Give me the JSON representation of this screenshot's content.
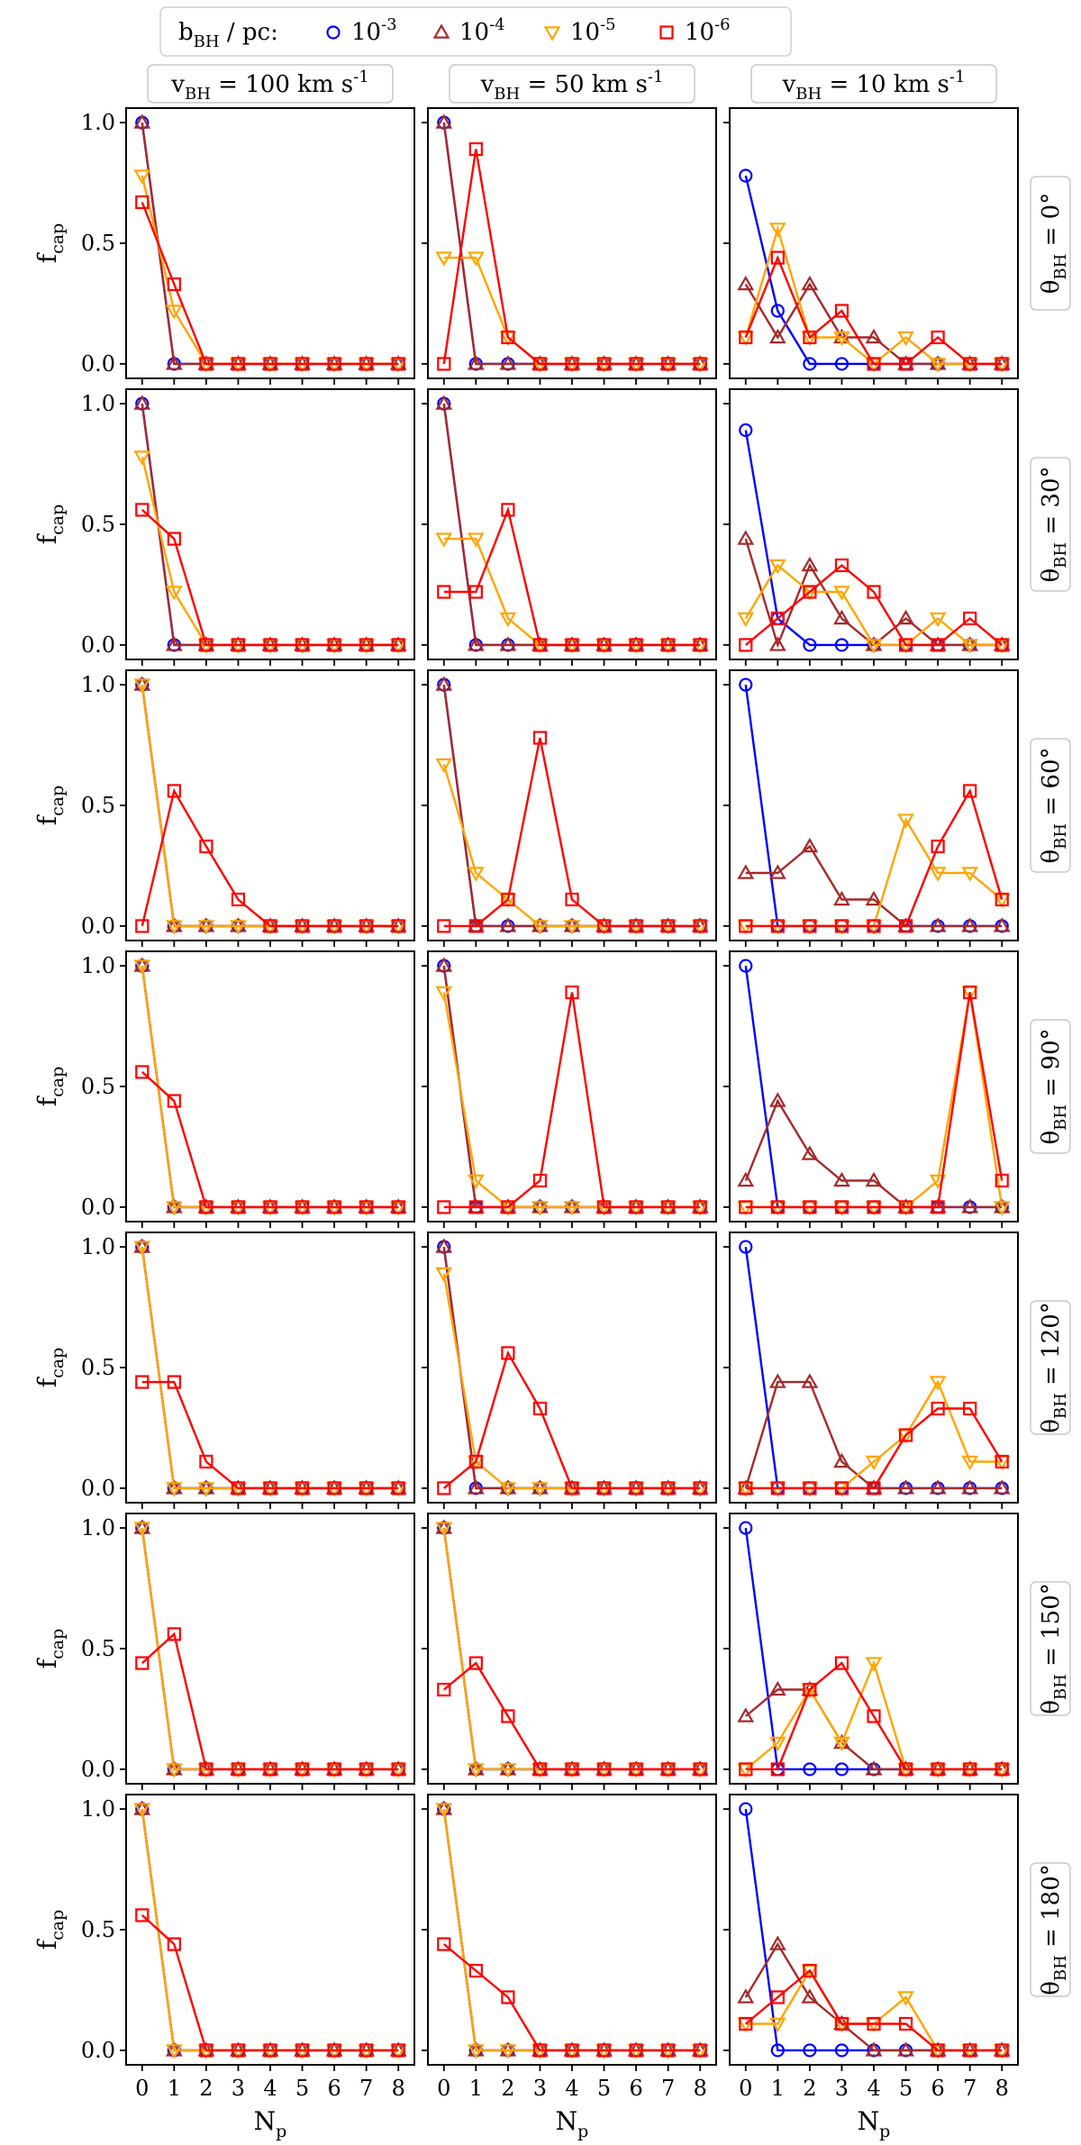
{
  "legend": {
    "title": "b_BH / pc:",
    "entries": [
      {
        "label": "10^-3",
        "color": "#0000ff",
        "marker": "circle"
      },
      {
        "label": "10^-4",
        "color": "#a52a2a",
        "marker": "triangle-up"
      },
      {
        "label": "10^-5",
        "color": "#ffa500",
        "marker": "triangle-down"
      },
      {
        "label": "10^-6",
        "color": "#ff0000",
        "marker": "square"
      }
    ]
  },
  "columns": [
    "v_BH = 100 km s^-1",
    "v_BH = 50 km s^-1",
    "v_BH = 10 km s^-1"
  ],
  "rows": [
    "θ_BH = 0°",
    "θ_BH = 30°",
    "θ_BH = 60°",
    "θ_BH = 90°",
    "θ_BH = 120°",
    "θ_BH = 150°",
    "θ_BH = 180°"
  ],
  "chart_data": {
    "type": "line",
    "xlabel": "N_p",
    "ylabel": "f_cap",
    "x": [
      0,
      1,
      2,
      3,
      4,
      5,
      6,
      7,
      8
    ],
    "xticks": [
      "0",
      "1",
      "2",
      "3",
      "4",
      "5",
      "6",
      "7",
      "8"
    ],
    "yticks": [
      "0.0",
      "0.5",
      "1.0"
    ],
    "ylim": [
      -0.06,
      1.06
    ],
    "panels": [
      [
        {
          "s1e3": [
            1,
            0,
            0,
            0,
            0,
            0,
            0,
            0,
            0
          ],
          "s1e4": [
            1,
            0,
            0,
            0,
            0,
            0,
            0,
            0,
            0
          ],
          "s1e5": [
            0.78,
            0.22,
            0,
            0,
            0,
            0,
            0,
            0,
            0
          ],
          "s1e6": [
            0.67,
            0.33,
            0,
            0,
            0,
            0,
            0,
            0,
            0
          ]
        },
        {
          "s1e3": [
            1,
            0,
            0,
            0,
            0,
            0,
            0,
            0,
            0
          ],
          "s1e4": [
            1,
            0,
            0,
            0,
            0,
            0,
            0,
            0,
            0
          ],
          "s1e5": [
            0.44,
            0.44,
            0.11,
            0,
            0,
            0,
            0,
            0,
            0
          ],
          "s1e6": [
            0,
            0.89,
            0.11,
            0,
            0,
            0,
            0,
            0,
            0
          ]
        },
        {
          "s1e3": [
            0.78,
            0.22,
            0,
            0,
            0,
            0,
            0,
            0,
            0
          ],
          "s1e4": [
            0.33,
            0.11,
            0.33,
            0.11,
            0.11,
            0,
            0,
            0,
            0
          ],
          "s1e5": [
            0.11,
            0.56,
            0.11,
            0.11,
            0,
            0.11,
            0,
            0,
            0
          ],
          "s1e6": [
            0.11,
            0.44,
            0.11,
            0.22,
            0,
            0,
            0.11,
            0,
            0
          ]
        }
      ],
      [
        {
          "s1e3": [
            1,
            0,
            0,
            0,
            0,
            0,
            0,
            0,
            0
          ],
          "s1e4": [
            1,
            0,
            0,
            0,
            0,
            0,
            0,
            0,
            0
          ],
          "s1e5": [
            0.78,
            0.22,
            0,
            0,
            0,
            0,
            0,
            0,
            0
          ],
          "s1e6": [
            0.56,
            0.44,
            0,
            0,
            0,
            0,
            0,
            0,
            0
          ]
        },
        {
          "s1e3": [
            1,
            0,
            0,
            0,
            0,
            0,
            0,
            0,
            0
          ],
          "s1e4": [
            1,
            0,
            0,
            0,
            0,
            0,
            0,
            0,
            0
          ],
          "s1e5": [
            0.44,
            0.44,
            0.11,
            0,
            0,
            0,
            0,
            0,
            0
          ],
          "s1e6": [
            0.22,
            0.22,
            0.56,
            0,
            0,
            0,
            0,
            0,
            0
          ]
        },
        {
          "s1e3": [
            0.89,
            0.11,
            0,
            0,
            0,
            0,
            0,
            0,
            0
          ],
          "s1e4": [
            0.44,
            0,
            0.33,
            0.11,
            0,
            0.11,
            0,
            0,
            0
          ],
          "s1e5": [
            0.11,
            0.33,
            0.22,
            0.22,
            0,
            0,
            0.11,
            0,
            0
          ],
          "s1e6": [
            0,
            0.11,
            0.22,
            0.33,
            0.22,
            0,
            0,
            0.11,
            0
          ]
        }
      ],
      [
        {
          "s1e3": [
            1,
            0,
            0,
            0,
            0,
            0,
            0,
            0,
            0
          ],
          "s1e4": [
            1,
            0,
            0,
            0,
            0,
            0,
            0,
            0,
            0
          ],
          "s1e5": [
            1,
            0,
            0,
            0,
            0,
            0,
            0,
            0,
            0
          ],
          "s1e6": [
            0,
            0.56,
            0.33,
            0.11,
            0,
            0,
            0,
            0,
            0
          ]
        },
        {
          "s1e3": [
            1,
            0,
            0,
            0,
            0,
            0,
            0,
            0,
            0
          ],
          "s1e4": [
            1,
            0,
            0,
            0,
            0,
            0,
            0,
            0,
            0
          ],
          "s1e5": [
            0.67,
            0.22,
            0.11,
            0,
            0,
            0,
            0,
            0,
            0
          ],
          "s1e6": [
            0,
            0,
            0.11,
            0.78,
            0.11,
            0,
            0,
            0,
            0
          ]
        },
        {
          "s1e3": [
            1,
            0,
            0,
            0,
            0,
            0,
            0,
            0,
            0
          ],
          "s1e4": [
            0.22,
            0.22,
            0.33,
            0.11,
            0.11,
            0,
            0,
            0,
            0
          ],
          "s1e5": [
            0,
            0,
            0,
            0,
            0,
            0.44,
            0.22,
            0.22,
            0.11
          ],
          "s1e6": [
            0,
            0,
            0,
            0,
            0,
            0,
            0.33,
            0.56,
            0.11
          ]
        }
      ],
      [
        {
          "s1e3": [
            1,
            0,
            0,
            0,
            0,
            0,
            0,
            0,
            0
          ],
          "s1e4": [
            1,
            0,
            0,
            0,
            0,
            0,
            0,
            0,
            0
          ],
          "s1e5": [
            1,
            0,
            0,
            0,
            0,
            0,
            0,
            0,
            0
          ],
          "s1e6": [
            0.56,
            0.44,
            0,
            0,
            0,
            0,
            0,
            0,
            0
          ]
        },
        {
          "s1e3": [
            1,
            0,
            0,
            0,
            0,
            0,
            0,
            0,
            0
          ],
          "s1e4": [
            1,
            0,
            0,
            0,
            0,
            0,
            0,
            0,
            0
          ],
          "s1e5": [
            0.89,
            0.11,
            0,
            0,
            0,
            0,
            0,
            0,
            0
          ],
          "s1e6": [
            0,
            0,
            0,
            0.11,
            0.89,
            0,
            0,
            0,
            0
          ]
        },
        {
          "s1e3": [
            1,
            0,
            0,
            0,
            0,
            0,
            0,
            0,
            0
          ],
          "s1e4": [
            0.11,
            0.44,
            0.22,
            0.11,
            0.11,
            0,
            0,
            0,
            0
          ],
          "s1e5": [
            0,
            0,
            0,
            0,
            0,
            0,
            0.11,
            0.89,
            0
          ],
          "s1e6": [
            0,
            0,
            0,
            0,
            0,
            0,
            0,
            0.89,
            0.11
          ]
        }
      ],
      [
        {
          "s1e3": [
            1,
            0,
            0,
            0,
            0,
            0,
            0,
            0,
            0
          ],
          "s1e4": [
            1,
            0,
            0,
            0,
            0,
            0,
            0,
            0,
            0
          ],
          "s1e5": [
            1,
            0,
            0,
            0,
            0,
            0,
            0,
            0,
            0
          ],
          "s1e6": [
            0.44,
            0.44,
            0.11,
            0,
            0,
            0,
            0,
            0,
            0
          ]
        },
        {
          "s1e3": [
            1,
            0,
            0,
            0,
            0,
            0,
            0,
            0,
            0
          ],
          "s1e4": [
            1,
            0,
            0,
            0,
            0,
            0,
            0,
            0,
            0
          ],
          "s1e5": [
            0.89,
            0.11,
            0,
            0,
            0,
            0,
            0,
            0,
            0
          ],
          "s1e6": [
            0,
            0.11,
            0.56,
            0.33,
            0,
            0,
            0,
            0,
            0
          ]
        },
        {
          "s1e3": [
            1,
            0,
            0,
            0,
            0,
            0,
            0,
            0,
            0
          ],
          "s1e4": [
            0,
            0.44,
            0.44,
            0.11,
            0,
            0,
            0,
            0,
            0
          ],
          "s1e5": [
            0,
            0,
            0,
            0,
            0.11,
            0.22,
            0.44,
            0.11,
            0.11
          ],
          "s1e6": [
            0,
            0,
            0,
            0,
            0,
            0.22,
            0.33,
            0.33,
            0.11
          ]
        }
      ],
      [
        {
          "s1e3": [
            1,
            0,
            0,
            0,
            0,
            0,
            0,
            0,
            0
          ],
          "s1e4": [
            1,
            0,
            0,
            0,
            0,
            0,
            0,
            0,
            0
          ],
          "s1e5": [
            1,
            0,
            0,
            0,
            0,
            0,
            0,
            0,
            0
          ],
          "s1e6": [
            0.44,
            0.56,
            0,
            0,
            0,
            0,
            0,
            0,
            0
          ]
        },
        {
          "s1e3": [
            1,
            0,
            0,
            0,
            0,
            0,
            0,
            0,
            0
          ],
          "s1e4": [
            1,
            0,
            0,
            0,
            0,
            0,
            0,
            0,
            0
          ],
          "s1e5": [
            1,
            0,
            0,
            0,
            0,
            0,
            0,
            0,
            0
          ],
          "s1e6": [
            0.33,
            0.44,
            0.22,
            0,
            0,
            0,
            0,
            0,
            0
          ]
        },
        {
          "s1e3": [
            1,
            0,
            0,
            0,
            0,
            0,
            0,
            0,
            0
          ],
          "s1e4": [
            0.22,
            0.33,
            0.33,
            0.11,
            0,
            0,
            0,
            0,
            0
          ],
          "s1e5": [
            0,
            0.11,
            0.33,
            0.11,
            0.44,
            0,
            0,
            0,
            0
          ],
          "s1e6": [
            0,
            0,
            0.33,
            0.44,
            0.22,
            0,
            0,
            0,
            0
          ]
        }
      ],
      [
        {
          "s1e3": [
            1,
            0,
            0,
            0,
            0,
            0,
            0,
            0,
            0
          ],
          "s1e4": [
            1,
            0,
            0,
            0,
            0,
            0,
            0,
            0,
            0
          ],
          "s1e5": [
            1,
            0,
            0,
            0,
            0,
            0,
            0,
            0,
            0
          ],
          "s1e6": [
            0.56,
            0.44,
            0,
            0,
            0,
            0,
            0,
            0,
            0
          ]
        },
        {
          "s1e3": [
            1,
            0,
            0,
            0,
            0,
            0,
            0,
            0,
            0
          ],
          "s1e4": [
            1,
            0,
            0,
            0,
            0,
            0,
            0,
            0,
            0
          ],
          "s1e5": [
            1,
            0,
            0,
            0,
            0,
            0,
            0,
            0,
            0
          ],
          "s1e6": [
            0.44,
            0.33,
            0.22,
            0,
            0,
            0,
            0,
            0,
            0
          ]
        },
        {
          "s1e3": [
            1,
            0,
            0,
            0,
            0,
            0,
            0,
            0,
            0
          ],
          "s1e4": [
            0.22,
            0.44,
            0.22,
            0.11,
            0,
            0,
            0,
            0,
            0
          ],
          "s1e5": [
            0.11,
            0.11,
            0.33,
            0.11,
            0.11,
            0.22,
            0,
            0,
            0
          ],
          "s1e6": [
            0.11,
            0.22,
            0.33,
            0.11,
            0.11,
            0.11,
            0,
            0,
            0
          ]
        }
      ]
    ]
  }
}
